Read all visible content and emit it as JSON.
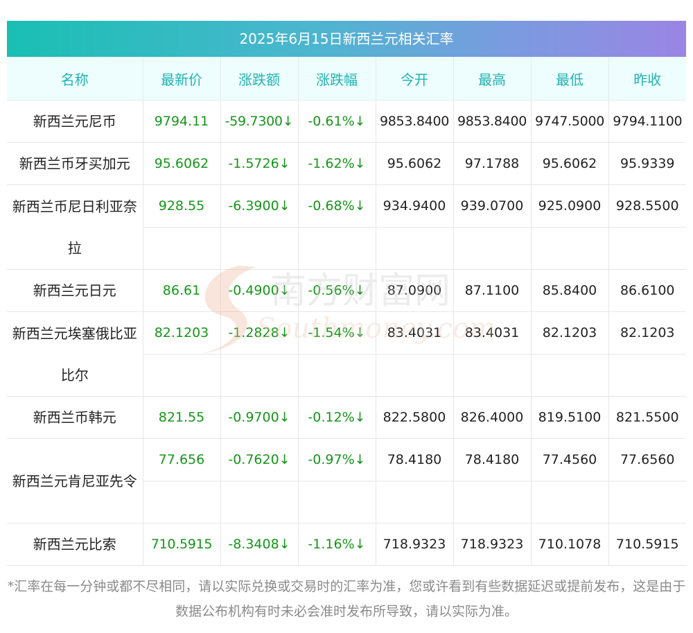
{
  "caption": "2025年6月15日新西兰元相关汇率",
  "headers": [
    "名称",
    "最新价",
    "涨跌额",
    "涨跌幅",
    "今开",
    "最高",
    "最低",
    "昨收"
  ],
  "rows": [
    {
      "name": "新西兰元尼币",
      "latest": "9794.11",
      "change": "-59.7300↓",
      "pct": "-0.61%↓",
      "open": "9853.8400",
      "high": "9853.8400",
      "low": "9747.5000",
      "prev": "9794.1100"
    },
    {
      "name": "新西兰币牙买加元",
      "latest": "95.6062",
      "change": "-1.5726↓",
      "pct": "-1.62%↓",
      "open": "95.6062",
      "high": "97.1788",
      "low": "95.6062",
      "prev": "95.9339"
    },
    {
      "name": "新西兰币尼日利亚奈拉",
      "latest": "928.55",
      "change": "-6.3900↓",
      "pct": "-0.68%↓",
      "open": "934.9400",
      "high": "939.0700",
      "low": "925.0900",
      "prev": "928.5500"
    },
    {
      "name": "新西兰元日元",
      "latest": "86.61",
      "change": "-0.4900↓",
      "pct": "-0.56%↓",
      "open": "87.0900",
      "high": "87.1100",
      "low": "85.8400",
      "prev": "86.6100"
    },
    {
      "name": "新西兰元埃塞俄比亚比尔",
      "latest": "82.1203",
      "change": "-1.2828↓",
      "pct": "-1.54%↓",
      "open": "83.4031",
      "high": "83.4031",
      "low": "82.1203",
      "prev": "82.1203"
    },
    {
      "name": "新西兰币韩元",
      "latest": "821.55",
      "change": "-0.9700↓",
      "pct": "-0.12%↓",
      "open": "822.5800",
      "high": "826.4000",
      "low": "819.5100",
      "prev": "821.5500"
    },
    {
      "name": "新西兰元肯尼亚先令",
      "latest": "77.656",
      "change": "-0.7620↓",
      "pct": "-0.97%↓",
      "open": "78.4180",
      "high": "78.4180",
      "low": "77.4560",
      "prev": "77.6560"
    },
    {
      "name": "新西兰元比索",
      "latest": "710.5915",
      "change": "-8.3408↓",
      "pct": "-1.16%↓",
      "open": "718.9323",
      "high": "718.9323",
      "low": "710.1078",
      "prev": "710.5915"
    }
  ],
  "watermark": {
    "cn": "南方财富网",
    "en": "Southmoney.com"
  },
  "footnote": "*汇率在每一分钟或都不尽相同，请以实际兑换或交易时的汇率为准，您或许看到有些数据延迟或提前发布，这是由于数据公布机构有时未必会准时发布所导致，请以实际为准。",
  "colors": {
    "header_text": "#20b3b3",
    "down_value": "#16951a",
    "caption_gradient_start": "#19bfb3",
    "caption_gradient_end": "#9a85e4"
  }
}
